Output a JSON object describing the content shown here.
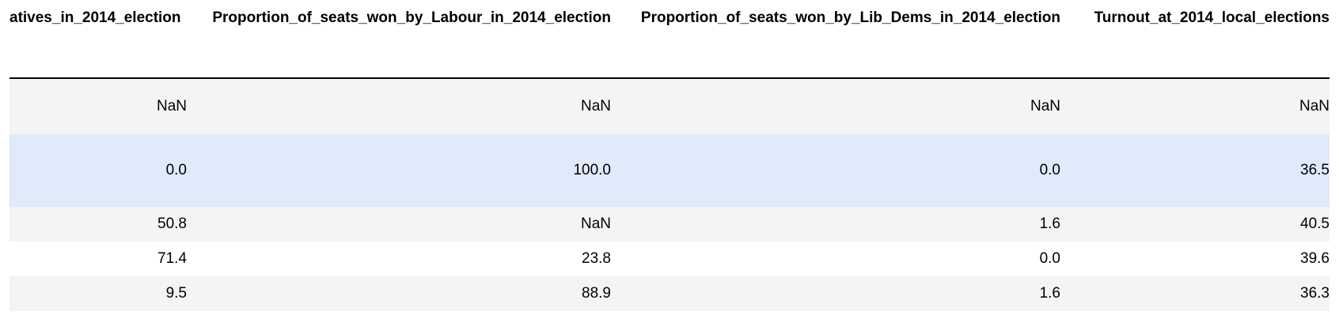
{
  "table": {
    "columns": [
      "atives_in_2014_election",
      "Proportion_of_seats_won_by_Labour_in_2014_election",
      "Proportion_of_seats_won_by_Lib_Dems_in_2014_election",
      "Turnout_at_2014_local_elections"
    ],
    "rows": [
      [
        "NaN",
        "NaN",
        "NaN",
        "NaN"
      ],
      [
        "0.0",
        "100.0",
        "0.0",
        "36.5"
      ],
      [
        "50.8",
        "NaN",
        "1.6",
        "40.5"
      ],
      [
        "71.4",
        "23.8",
        "0.0",
        "39.6"
      ],
      [
        "9.5",
        "88.9",
        "1.6",
        "36.3"
      ]
    ],
    "highlighted_row": 1
  },
  "colors": {
    "stripe": "#f4f4f4",
    "hover_highlight": "#dfeafa",
    "header_rule": "#000000"
  }
}
